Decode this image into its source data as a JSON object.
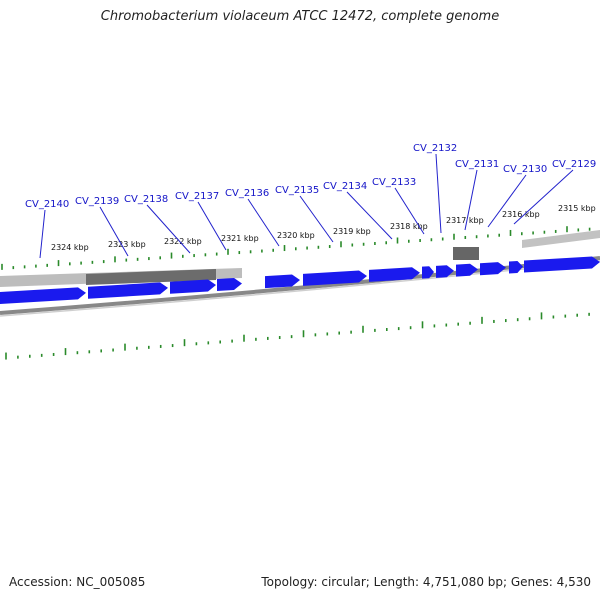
{
  "title": "Chromobacterium violaceum ATCC 12472, complete genome",
  "footer": {
    "accession": "Accession: NC_005085",
    "summary": "Topology: circular; Length: 4,751,080 bp; Genes: 4,530"
  },
  "colors": {
    "gene": "#1a1aee",
    "gene_label": "#1515c8",
    "tick": "#2a8a2a",
    "backbone": "#888888"
  },
  "kbp_ticks": [
    "2324 kbp",
    "2323 kbp",
    "2322 kbp",
    "2321 kbp",
    "2320 kbp",
    "2319 kbp",
    "2318 kbp",
    "2317 kbp",
    "2316 kbp",
    "2315 kbp"
  ],
  "gene_labels": [
    "CV_2140",
    "CV_2139",
    "CV_2138",
    "CV_2137",
    "CV_2136",
    "CV_2135",
    "CV_2134",
    "CV_2133",
    "CV_2132",
    "CV_2131",
    "CV_2130",
    "CV_2129"
  ]
}
